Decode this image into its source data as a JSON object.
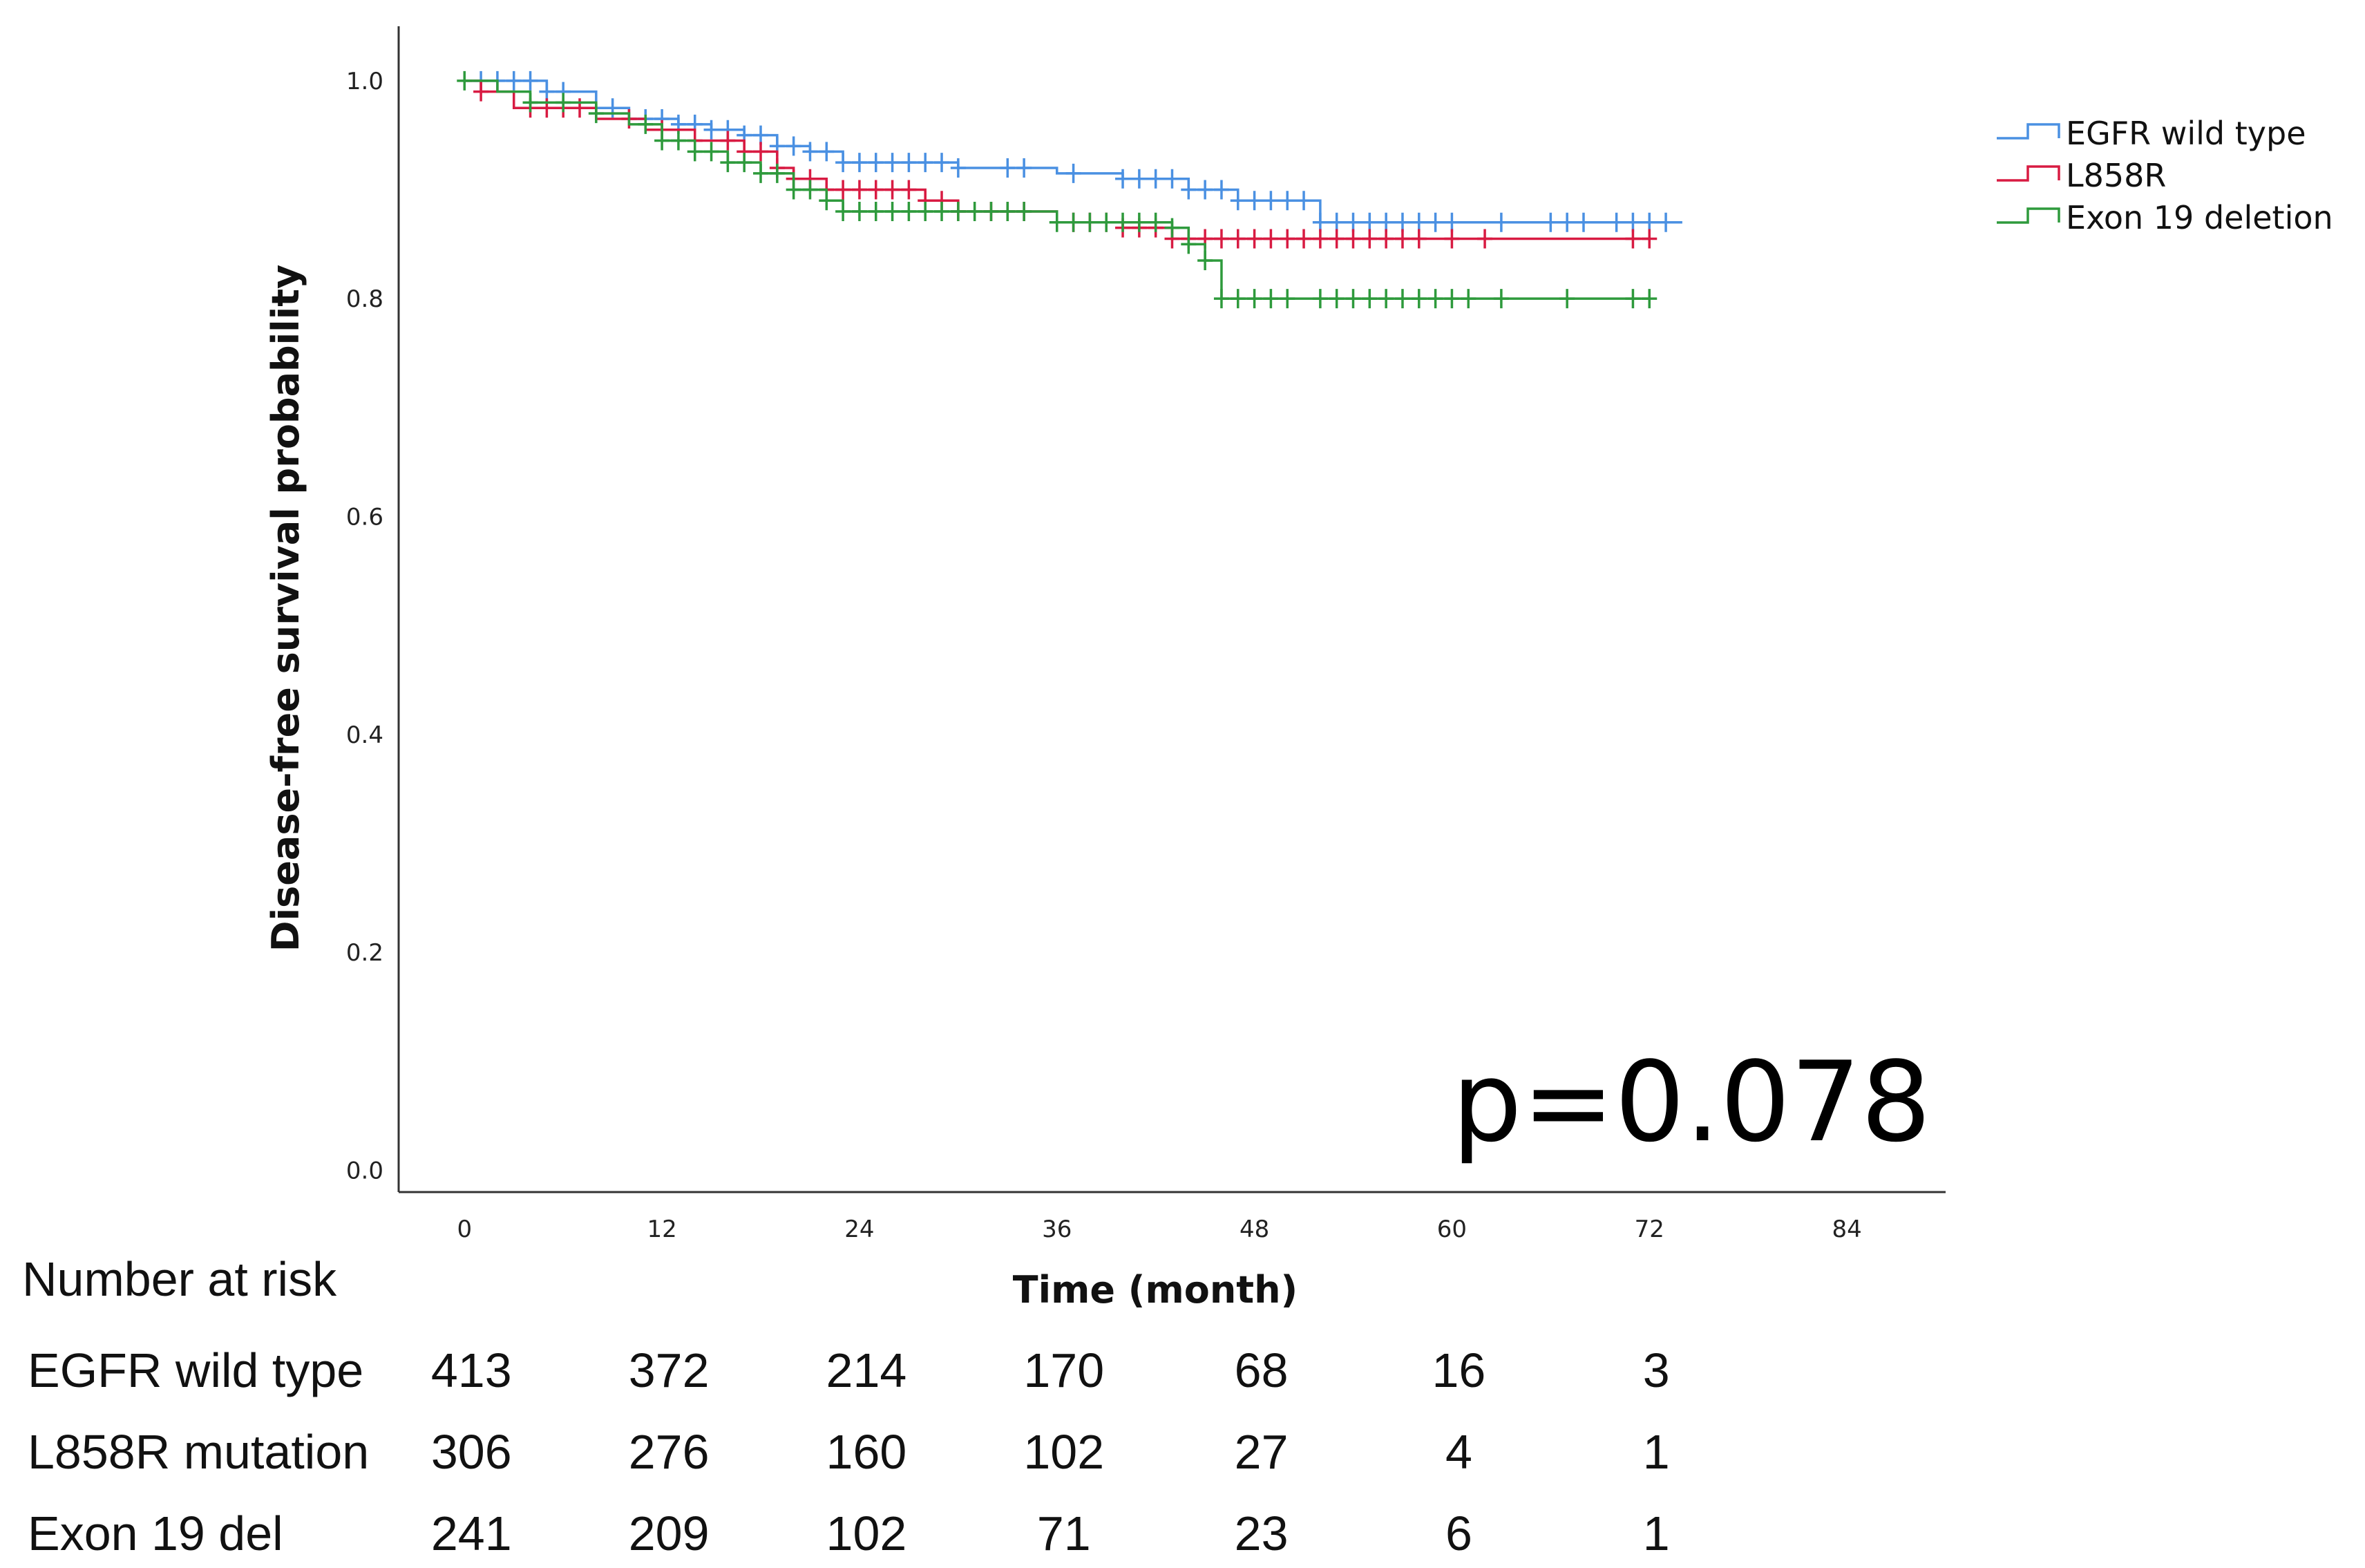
{
  "chart_data": {
    "type": "line",
    "subtype": "kaplan-meier",
    "title": "",
    "xlabel": "Time (month)",
    "ylabel": "Disease-free survival probability",
    "xlim": [
      -4,
      90
    ],
    "ylim": [
      -0.02,
      1.05
    ],
    "xticks": [
      0,
      12,
      24,
      36,
      48,
      60,
      72,
      84
    ],
    "yticks": [
      0.0,
      0.2,
      0.4,
      0.6,
      0.8,
      1.0
    ],
    "xtick_labels": [
      "0",
      "12",
      "24",
      "36",
      "48",
      "60",
      "72",
      "84"
    ],
    "ytick_labels": [
      "0.0",
      "0.2",
      "0.4",
      "0.6",
      "0.8",
      "1.0"
    ],
    "legend_position": "top-right",
    "annotation": "p=0.078",
    "series": [
      {
        "name": "EGFR wild type",
        "color": "#4a90e2",
        "steps": [
          [
            0,
            1.0
          ],
          [
            5,
            0.99
          ],
          [
            8,
            0.975
          ],
          [
            10,
            0.965
          ],
          [
            13,
            0.96
          ],
          [
            15,
            0.955
          ],
          [
            17,
            0.95
          ],
          [
            19,
            0.94
          ],
          [
            21,
            0.935
          ],
          [
            23,
            0.925
          ],
          [
            30,
            0.92
          ],
          [
            36,
            0.915
          ],
          [
            40,
            0.91
          ],
          [
            44,
            0.9
          ],
          [
            47,
            0.89
          ],
          [
            52,
            0.87
          ],
          [
            74,
            0.87
          ]
        ],
        "censored": [
          1,
          2,
          3,
          4,
          5,
          6,
          9,
          11,
          12,
          13,
          14,
          15,
          16,
          17,
          18,
          19,
          20,
          21,
          22,
          23,
          24,
          25,
          26,
          27,
          28,
          29,
          30,
          33,
          34,
          37,
          40,
          41,
          42,
          43,
          44,
          45,
          46,
          47,
          48,
          49,
          50,
          51,
          52,
          53,
          54,
          55,
          56,
          57,
          58,
          59,
          60,
          63,
          66,
          67,
          68,
          70,
          71,
          72,
          73
        ]
      },
      {
        "name": "L858R",
        "color": "#d81b42",
        "steps": [
          [
            0,
            1.0
          ],
          [
            1,
            0.99
          ],
          [
            3,
            0.975
          ],
          [
            8,
            0.965
          ],
          [
            11,
            0.955
          ],
          [
            14,
            0.945
          ],
          [
            17,
            0.935
          ],
          [
            19,
            0.92
          ],
          [
            20,
            0.91
          ],
          [
            22,
            0.9
          ],
          [
            28,
            0.89
          ],
          [
            30,
            0.88
          ],
          [
            36,
            0.87
          ],
          [
            40,
            0.865
          ],
          [
            43,
            0.855
          ],
          [
            72,
            0.855
          ]
        ],
        "censored": [
          1,
          4,
          5,
          6,
          7,
          10,
          12,
          14,
          16,
          17,
          18,
          19,
          20,
          21,
          22,
          23,
          24,
          25,
          26,
          27,
          28,
          29,
          30,
          32,
          33,
          34,
          37,
          38,
          39,
          40,
          41,
          42,
          43,
          44,
          45,
          46,
          47,
          48,
          49,
          50,
          51,
          52,
          53,
          54,
          55,
          56,
          57,
          58,
          60,
          62,
          71,
          72
        ]
      },
      {
        "name": "Exon 19 deletion",
        "color": "#2e9a3c",
        "steps": [
          [
            0,
            1.0
          ],
          [
            2,
            0.99
          ],
          [
            4,
            0.98
          ],
          [
            8,
            0.97
          ],
          [
            10,
            0.96
          ],
          [
            12,
            0.945
          ],
          [
            14,
            0.935
          ],
          [
            16,
            0.925
          ],
          [
            18,
            0.915
          ],
          [
            20,
            0.9
          ],
          [
            22,
            0.89
          ],
          [
            23,
            0.88
          ],
          [
            36,
            0.87
          ],
          [
            43,
            0.865
          ],
          [
            44,
            0.85
          ],
          [
            45,
            0.835
          ],
          [
            46,
            0.8
          ],
          [
            72,
            0.8
          ]
        ],
        "censored": [
          0,
          4,
          6,
          8,
          11,
          12,
          13,
          14,
          15,
          16,
          17,
          18,
          19,
          20,
          21,
          22,
          23,
          24,
          25,
          26,
          27,
          28,
          29,
          30,
          31,
          32,
          33,
          34,
          36,
          37,
          38,
          39,
          40,
          41,
          42,
          43,
          44,
          45,
          46,
          47,
          48,
          49,
          50,
          52,
          53,
          54,
          55,
          56,
          57,
          58,
          59,
          60,
          61,
          63,
          67,
          71,
          72
        ]
      }
    ],
    "risk_table": {
      "title": "Number at risk",
      "timepoints": [
        0,
        12,
        24,
        36,
        48,
        60,
        72
      ],
      "rows": [
        {
          "label": "EGFR wild type",
          "values": [
            "413",
            "372",
            "214",
            "170",
            "68",
            "16",
            "3"
          ]
        },
        {
          "label": "L858R mutation",
          "values": [
            "306",
            "276",
            "160",
            "102",
            "27",
            "4",
            "1"
          ]
        },
        {
          "label": "Exon 19 del",
          "values": [
            "241",
            "209",
            "102",
            "71",
            "23",
            "6",
            "1"
          ]
        }
      ]
    }
  }
}
